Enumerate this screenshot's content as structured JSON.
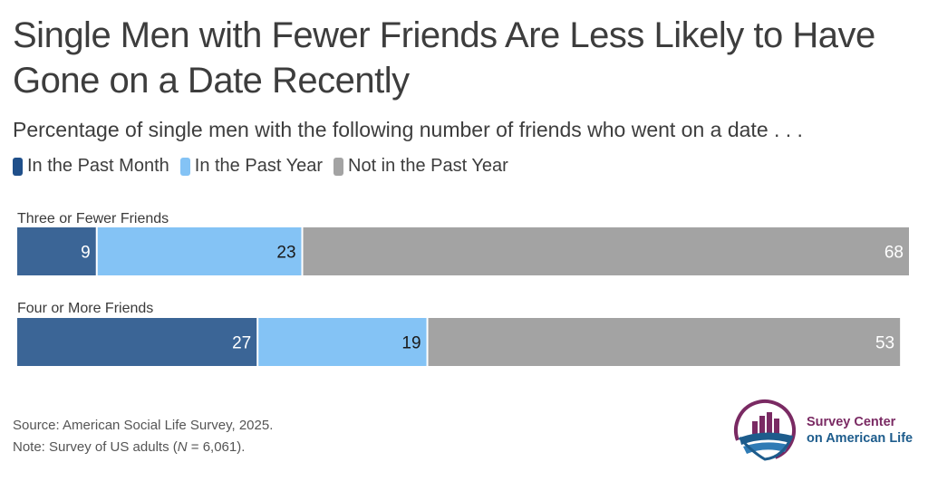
{
  "title": "Single Men with Fewer Friends Are Less Likely to Have Gone on a Date Recently",
  "subtitle": "Percentage of single men with the following number of friends who went on a date . . .",
  "source": "Source: American Social Life Survey, 2025.",
  "note_prefix": "Note: Survey of US adults (",
  "note_n_symbol": "N",
  "note_value": " = 6,061).",
  "logo": {
    "line1": "Survey Center",
    "line2": "on American Life"
  },
  "colors": {
    "past_month": "#3b6596",
    "past_year": "#84c3f5",
    "not_past_year": "#a3a3a3",
    "logo_purple": "#7a2a63",
    "logo_blue": "#1d5c8c"
  },
  "chart_data": {
    "type": "bar",
    "orientation": "horizontal",
    "stacked": true,
    "categories": [
      "Three or Fewer Friends",
      "Four or More Friends"
    ],
    "series": [
      {
        "name": "In the Past Month",
        "values": [
          9,
          27
        ]
      },
      {
        "name": "In the Past Year",
        "values": [
          23,
          19
        ]
      },
      {
        "name": "Not in the Past Year",
        "values": [
          68,
          53
        ]
      }
    ],
    "xlim": [
      0,
      100
    ],
    "grid": false,
    "legend": "top-left"
  }
}
